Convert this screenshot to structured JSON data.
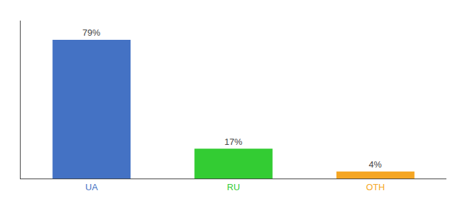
{
  "chart_data": {
    "type": "bar",
    "categories": [
      "UA",
      "RU",
      "OTH"
    ],
    "values": [
      79,
      17,
      4
    ],
    "value_labels": [
      "79%",
      "17%",
      "4%"
    ],
    "colors": [
      "#4472c4",
      "#33cc33",
      "#f5a623"
    ],
    "ylim": [
      0,
      90
    ],
    "data_labels": true,
    "tick_labels": "x",
    "grid": false
  }
}
